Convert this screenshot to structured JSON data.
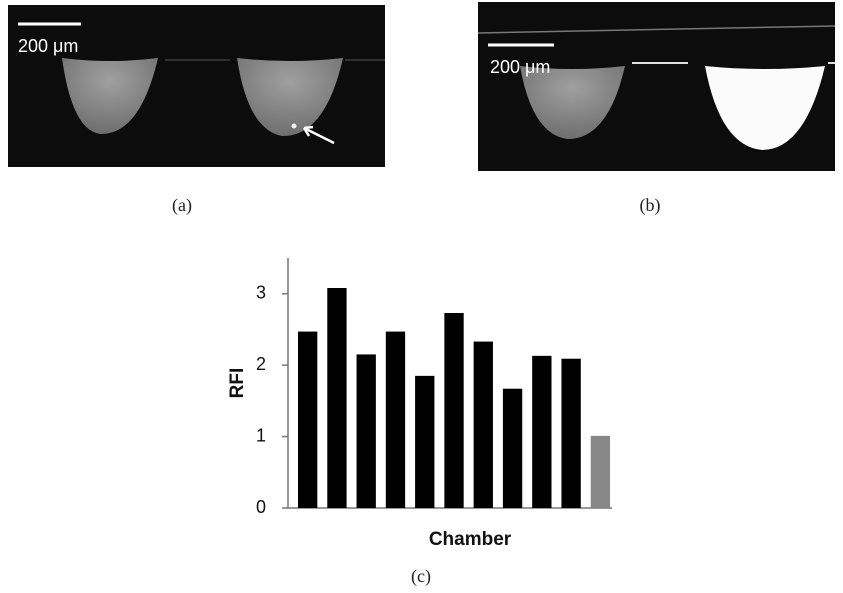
{
  "panels": [
    {
      "label": "(a)",
      "scale_bar": "200 μm"
    },
    {
      "label": "(b)",
      "scale_bar": "200 μm"
    }
  ],
  "chart_label": "(c)",
  "chart_data": {
    "type": "bar",
    "x_label": "Chamber",
    "y_label": "RFI",
    "categories": [
      null,
      null,
      null,
      null,
      null,
      null,
      null,
      null,
      null,
      null,
      null
    ],
    "values": [
      2.47,
      3.08,
      2.15,
      2.47,
      1.85,
      2.73,
      2.33,
      1.67,
      2.13,
      2.09,
      1.01
    ],
    "colors": [
      "#000000",
      "#000000",
      "#000000",
      "#000000",
      "#000000",
      "#000000",
      "#000000",
      "#000000",
      "#000000",
      "#000000",
      "#888888"
    ],
    "ylim": [
      0,
      3.5
    ],
    "yticks": [
      0,
      1,
      2,
      3
    ]
  }
}
